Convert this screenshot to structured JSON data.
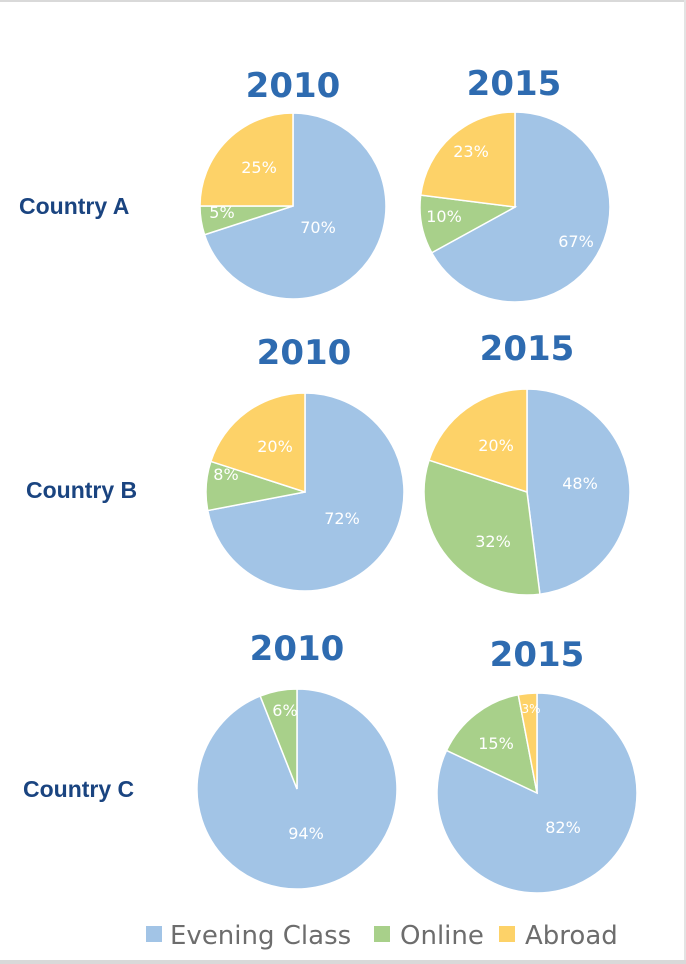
{
  "chart_data": [
    {
      "type": "pie",
      "row": "Country A",
      "title": "2010",
      "categories": [
        "Evening Class",
        "Online",
        "Abroad"
      ],
      "values": [
        70,
        5,
        25
      ],
      "labels": [
        "70%",
        "5%",
        "25%"
      ]
    },
    {
      "type": "pie",
      "row": "Country A",
      "title": "2015",
      "categories": [
        "Evening Class",
        "Online",
        "Abroad"
      ],
      "values": [
        67,
        10,
        23
      ],
      "labels": [
        "67%",
        "10%",
        "23%"
      ]
    },
    {
      "type": "pie",
      "row": "Country B",
      "title": "2010",
      "categories": [
        "Evening Class",
        "Online",
        "Abroad"
      ],
      "values": [
        72,
        8,
        20
      ],
      "labels": [
        "72%",
        "8%",
        "20%"
      ]
    },
    {
      "type": "pie",
      "row": "Country B",
      "title": "2015",
      "categories": [
        "Evening Class",
        "Online",
        "Abroad"
      ],
      "values": [
        48,
        32,
        20
      ],
      "labels": [
        "48%",
        "32%",
        "20%"
      ]
    },
    {
      "type": "pie",
      "row": "Country C",
      "title": "2010",
      "categories": [
        "Evening Class",
        "Online",
        "Abroad"
      ],
      "values": [
        94,
        6,
        0
      ],
      "labels": [
        "94%",
        "6%",
        ""
      ]
    },
    {
      "type": "pie",
      "row": "Country C",
      "title": "2015",
      "categories": [
        "Evening Class",
        "Online",
        "Abroad"
      ],
      "values": [
        82,
        15,
        3
      ],
      "labels": [
        "82%",
        "15%",
        "3%"
      ]
    }
  ],
  "rows": [
    "Country A",
    "Country B",
    "Country C"
  ],
  "legend": {
    "placement": "bottom",
    "items": [
      {
        "label": "Evening Class",
        "color": "#a2c4e6"
      },
      {
        "label": "Online",
        "color": "#a8d08a"
      },
      {
        "label": "Abroad",
        "color": "#fdd268"
      }
    ]
  },
  "colors": {
    "evening": "#a2c4e6",
    "online": "#a8d08a",
    "abroad": "#fdd268",
    "country_text": "#1a4480",
    "year_text": "#2e6bb0"
  }
}
